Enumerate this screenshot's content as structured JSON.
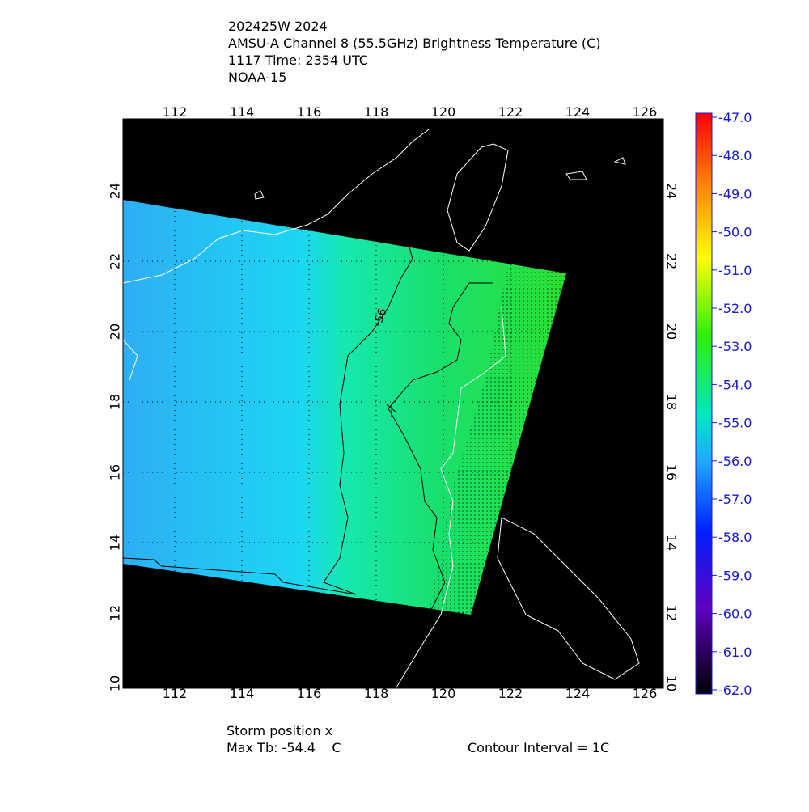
{
  "header": {
    "lines": [
      "202425W 2024",
      "AMSU-A Channel 8 (55.5GHz) Brightness Temperature (C)",
      "1117 Time: 2354 UTC",
      "NOAA-15"
    ]
  },
  "map": {
    "lon_ticks": [
      112,
      114,
      116,
      118,
      120,
      122,
      124,
      126
    ],
    "lat_ticks": [
      10,
      12,
      14,
      16,
      18,
      20,
      22,
      24
    ],
    "contour_label": "-56"
  },
  "colorbar": {
    "labels": [
      "-47.0",
      "-48.0",
      "-49.0",
      "-50.0",
      "-51.0",
      "-52.0",
      "-53.0",
      "-54.0",
      "-55.0",
      "-56.0",
      "-57.0",
      "-58.0",
      "-59.0",
      "-60.0",
      "-61.0",
      "-62.0"
    ]
  },
  "footer": {
    "storm": "Storm position x",
    "max_tb": "Max Tb: -54.4    C",
    "interval": "Contour Interval = 1C"
  }
}
